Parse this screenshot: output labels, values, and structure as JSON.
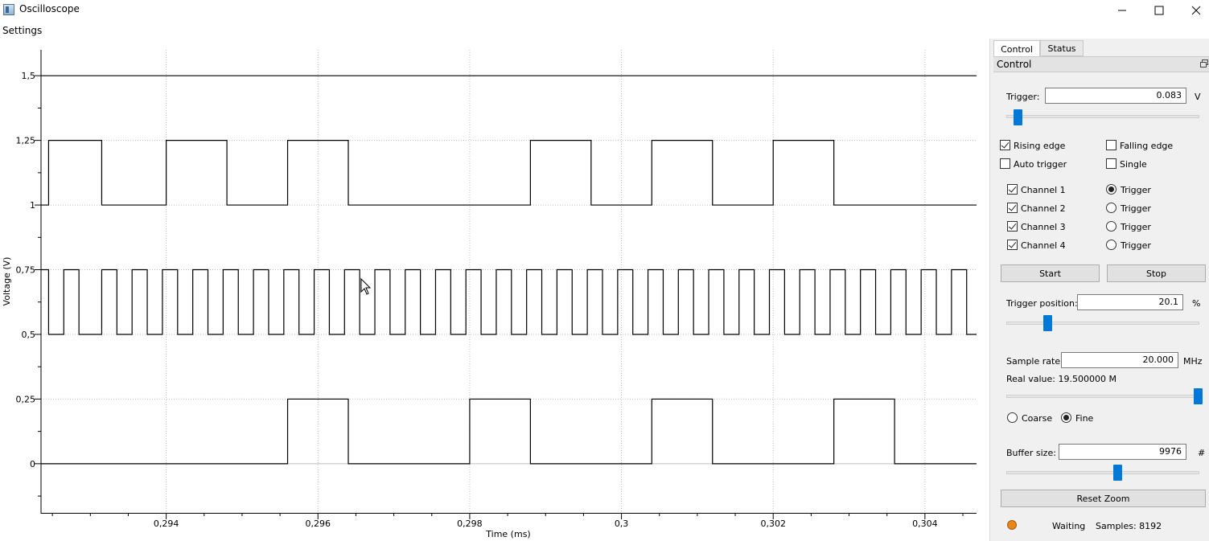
{
  "window": {
    "title": "Oscilloscope",
    "minimize_icon": "minimize-icon",
    "maximize_icon": "maximize-icon",
    "close_icon": "close-icon"
  },
  "menu": {
    "settings": "Settings"
  },
  "chart_data": {
    "type": "line",
    "xlabel": "Time (ms)",
    "ylabel": "Voltage (V)",
    "xlim": [
      0.29235,
      0.30468
    ],
    "ylim": [
      -0.19,
      1.6
    ],
    "xticks": [
      0.294,
      0.296,
      0.298,
      0.3,
      0.302,
      0.304
    ],
    "xtick_labels": [
      "0,294",
      "0,296",
      "0,298",
      "0,3",
      "0,302",
      "0,304"
    ],
    "yticks": [
      0,
      0.25,
      0.5,
      0.75,
      1,
      1.25,
      1.5
    ],
    "ytick_labels": [
      "0",
      "0,25",
      "0,5",
      "0,75",
      "1",
      "1,25",
      "1,5"
    ],
    "grid": true,
    "series": [
      {
        "low": 1.5,
        "high": 1.5,
        "transitions": []
      },
      {
        "low": 1.0,
        "high": 1.25,
        "transitions": [
          0.29245,
          0.29315,
          0.294,
          0.2948,
          0.2956,
          0.2964,
          0.2988,
          0.2996,
          0.3004,
          0.3012,
          0.302,
          0.3028
        ]
      },
      {
        "low": 0.5,
        "high": 0.75,
        "transitions": [
          0.29245,
          0.29265,
          0.29285,
          0.29315,
          0.29335,
          0.29355,
          0.29375,
          0.29395,
          0.29415,
          0.29435,
          0.29455,
          0.29475,
          0.29495,
          0.29515,
          0.29535,
          0.29555,
          0.29575,
          0.29595,
          0.29615,
          0.29635,
          0.29655,
          0.29675,
          0.29695,
          0.29715,
          0.29735,
          0.29755,
          0.29775,
          0.29795,
          0.29815,
          0.29835,
          0.29855,
          0.29875,
          0.29895,
          0.29915,
          0.29935,
          0.29955,
          0.29975,
          0.29995,
          0.30015,
          0.30035,
          0.30055,
          0.30075,
          0.30095,
          0.30115,
          0.30135,
          0.30155,
          0.30175,
          0.30195,
          0.30215,
          0.30235,
          0.30255,
          0.30275,
          0.30295,
          0.30315,
          0.30335,
          0.30355,
          0.30375,
          0.30395,
          0.30415,
          0.30435,
          0.30455
        ],
        "start_high": true
      },
      {
        "low": 0.0,
        "high": 0.25,
        "transitions": [
          0.2956,
          0.2964,
          0.298,
          0.2988,
          0.3004,
          0.3012,
          0.3028,
          0.3036
        ]
      }
    ]
  },
  "panel": {
    "tabs": [
      "Control",
      "Status"
    ],
    "header": "Control",
    "trigger_label": "Trigger:",
    "trigger_value": "0.083",
    "trigger_unit": "V",
    "trigger_slider_fraction": 0.04,
    "rising_edge": "Rising edge",
    "falling_edge": "Falling edge",
    "auto_trigger": "Auto trigger",
    "single": "Single",
    "channels": [
      {
        "label": "Channel 1",
        "checked": true,
        "trigger_label": "Trigger",
        "trigger_selected": true
      },
      {
        "label": "Channel 2",
        "checked": true,
        "trigger_label": "Trigger",
        "trigger_selected": false
      },
      {
        "label": "Channel 3",
        "checked": true,
        "trigger_label": "Trigger",
        "trigger_selected": false
      },
      {
        "label": "Channel 4",
        "checked": true,
        "trigger_label": "Trigger",
        "trigger_selected": false
      }
    ],
    "start": "Start",
    "stop": "Stop",
    "trigger_position_label": "Trigger position:",
    "trigger_position_value": "20.1",
    "trigger_position_unit": "%",
    "trigger_position_fraction": 0.201,
    "sample_rate_label": "Sample rate:",
    "sample_rate_value": "20.000",
    "sample_rate_unit": "MHz",
    "real_value": "Real value: 19.500000 M",
    "sample_rate_slider_fraction": 1.0,
    "coarse": "Coarse",
    "fine": "Fine",
    "buffer_size_label": "Buffer size:",
    "buffer_size_value": "9976",
    "buffer_size_unit": "#",
    "buffer_slider_fraction": 0.58,
    "reset_zoom": "Reset Zoom",
    "status_text": "Waiting",
    "samples_text": "Samples: 8192",
    "status_color": "#e8861a"
  }
}
